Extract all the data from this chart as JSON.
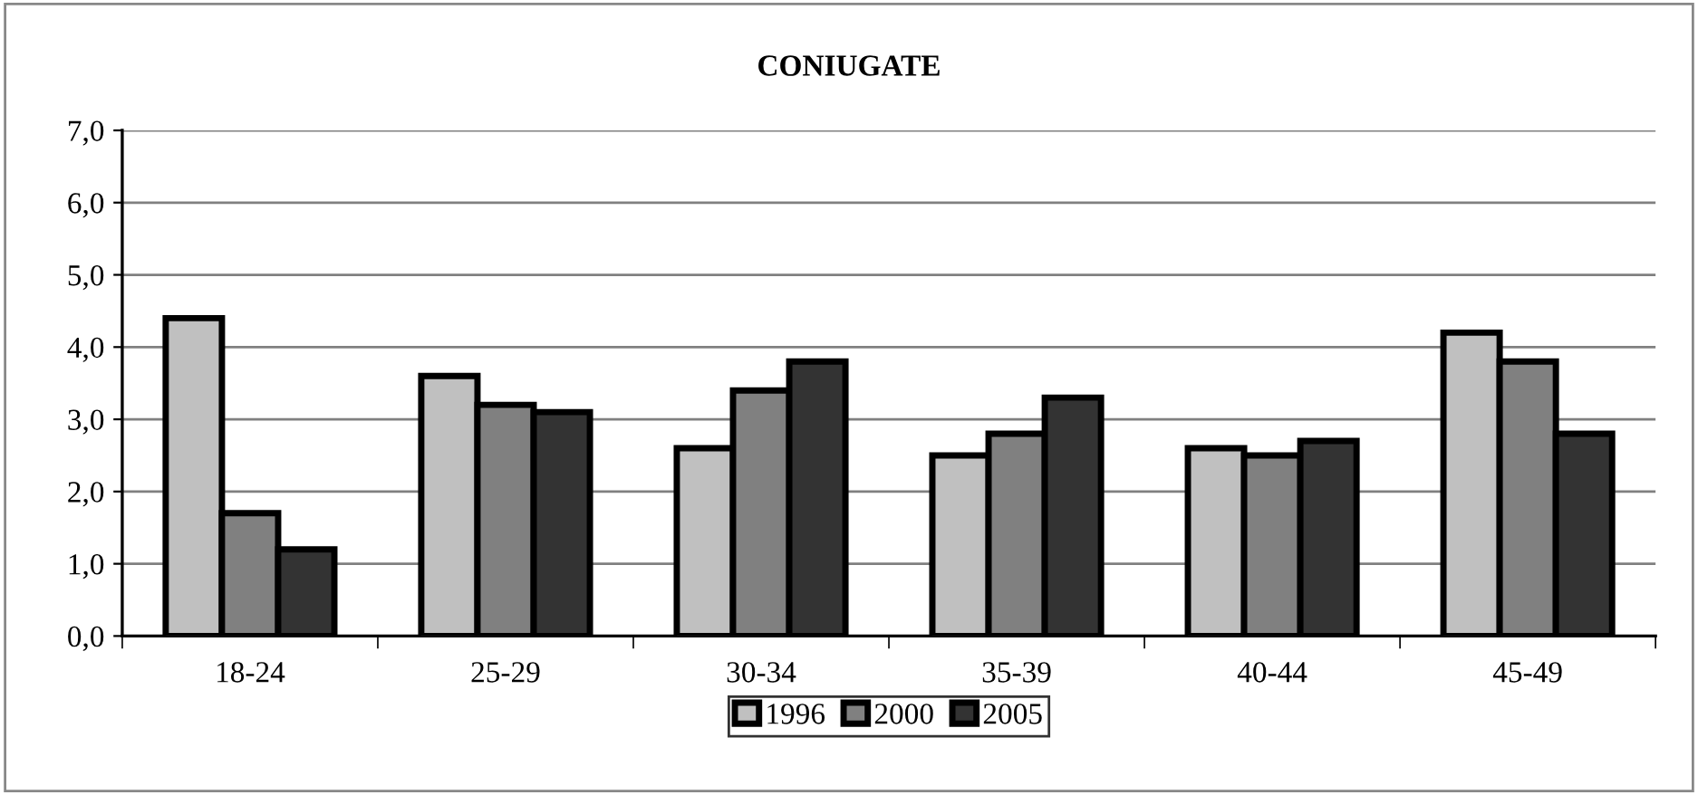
{
  "chart_data": {
    "type": "bar",
    "title": "CONIUGATE",
    "categories": [
      "18-24",
      "25-29",
      "30-34",
      "35-39",
      "40-44",
      "45-49"
    ],
    "series": [
      {
        "name": "1996",
        "color": "#c0c0c0",
        "values": [
          4.4,
          3.6,
          2.6,
          2.5,
          2.6,
          4.2
        ]
      },
      {
        "name": "2000",
        "color": "#808080",
        "values": [
          1.7,
          3.2,
          3.4,
          2.8,
          2.5,
          3.8
        ]
      },
      {
        "name": "2005",
        "color": "#333333",
        "values": [
          1.2,
          3.1,
          3.8,
          3.3,
          2.7,
          2.8
        ]
      }
    ],
    "ylim": [
      0,
      7
    ],
    "yticks": [
      {
        "value": 0,
        "label": "0,0"
      },
      {
        "value": 1,
        "label": "1,0"
      },
      {
        "value": 2,
        "label": "2,0"
      },
      {
        "value": 3,
        "label": "3,0"
      },
      {
        "value": 4,
        "label": "4,0"
      },
      {
        "value": 5,
        "label": "5,0"
      },
      {
        "value": 6,
        "label": "6,0"
      },
      {
        "value": 7,
        "label": "7,0"
      }
    ],
    "grid": "y",
    "legend": "bottom"
  }
}
